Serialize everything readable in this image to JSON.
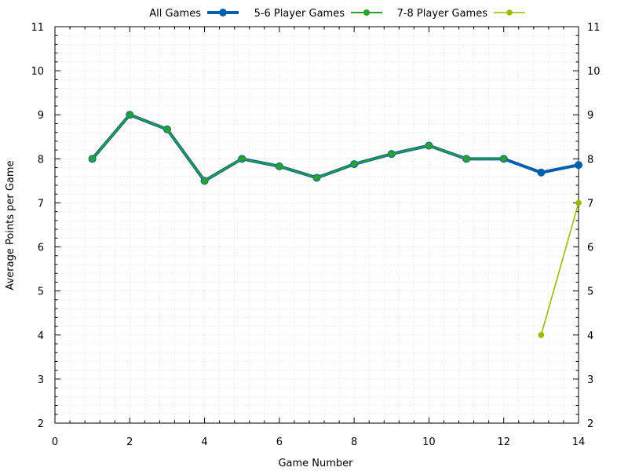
{
  "chart_data": {
    "type": "line",
    "title": "",
    "xlabel": "Game Number",
    "ylabel": "Average Points per Game",
    "xlim": [
      0,
      14
    ],
    "ylim": [
      2,
      11
    ],
    "xticks": [
      0,
      2,
      4,
      6,
      8,
      10,
      12,
      14
    ],
    "yticks": [
      2,
      3,
      4,
      5,
      6,
      7,
      8,
      9,
      10,
      11
    ],
    "grid": true,
    "legend_position": "top",
    "series": [
      {
        "name": "All Games",
        "color": "#0060ad",
        "x": [
          1,
          2,
          3,
          4,
          5,
          6,
          7,
          8,
          9,
          10,
          11,
          12,
          13,
          14
        ],
        "values": [
          8.0,
          9.0,
          8.67,
          7.5,
          8.0,
          7.83,
          7.57,
          7.88,
          8.11,
          8.3,
          8.0,
          8.0,
          7.69,
          7.86
        ]
      },
      {
        "name": "5-6 Player Games",
        "color": "#2ca02c",
        "x": [
          1,
          2,
          3,
          4,
          5,
          6,
          7,
          8,
          9,
          10,
          11,
          12
        ],
        "values": [
          8.0,
          9.0,
          8.67,
          7.5,
          8.0,
          7.83,
          7.57,
          7.88,
          8.11,
          8.3,
          8.0,
          8.0
        ]
      },
      {
        "name": "7-8 Player Games",
        "color": "#9aba00",
        "x": [
          13,
          14
        ],
        "values": [
          4.0,
          7.0
        ]
      }
    ]
  }
}
